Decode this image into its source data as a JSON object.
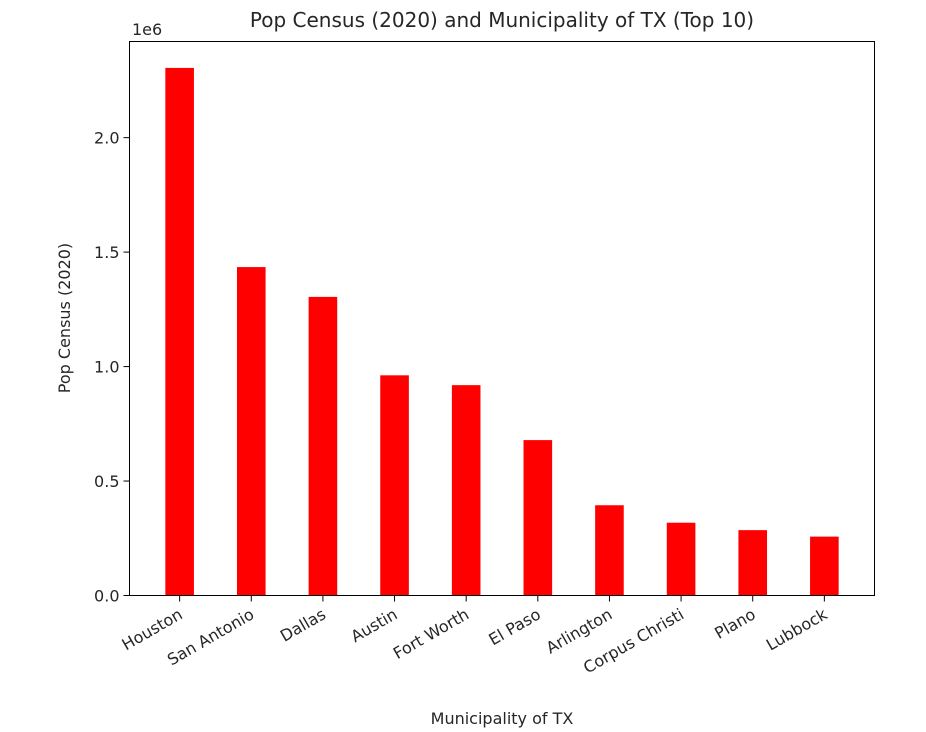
{
  "chart_data": {
    "type": "bar",
    "title": "Pop Census (2020) and Municipality of TX (Top 10)",
    "xlabel": "Municipality of TX",
    "ylabel": "Pop Census (2020)",
    "y_offset_label": "1e6",
    "categories": [
      "Houston",
      "San Antonio",
      "Dallas",
      "Austin",
      "Fort Worth",
      "El Paso",
      "Arlington",
      "Corpus Christi",
      "Plano",
      "Lubbock"
    ],
    "values": [
      2304580,
      1434625,
      1304379,
      961855,
      918915,
      678815,
      394266,
      317863,
      285494,
      257141
    ],
    "ylim": [
      0,
      2420000
    ],
    "yticks": [
      0,
      500000,
      1000000,
      1500000,
      2000000
    ],
    "ytick_labels": [
      "0.0",
      "0.5",
      "1.0",
      "1.5",
      "2.0"
    ],
    "bar_color": "#ff0000",
    "grid": false
  }
}
